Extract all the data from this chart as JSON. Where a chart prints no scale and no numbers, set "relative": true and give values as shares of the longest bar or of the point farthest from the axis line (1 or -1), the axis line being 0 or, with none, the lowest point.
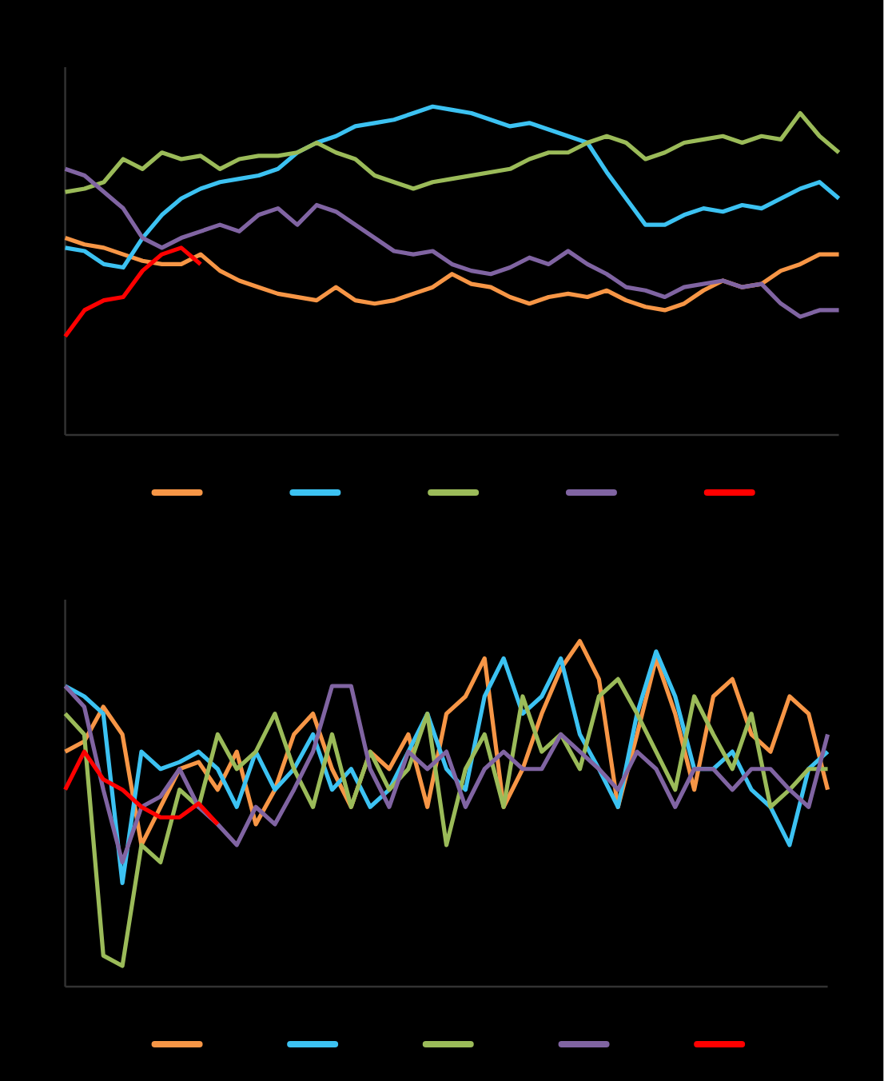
{
  "chart_data": [
    {
      "type": "line",
      "relative": true,
      "tick_labels": false,
      "line_style": "solid",
      "categories": [
        null,
        null,
        null,
        null,
        null,
        null,
        null,
        null,
        null,
        null,
        null,
        null,
        null,
        null,
        null,
        null,
        null,
        null,
        null,
        null,
        null,
        null,
        null,
        null,
        null,
        null,
        null,
        null,
        null,
        null,
        null,
        null,
        null,
        null,
        null,
        null,
        null,
        null,
        null,
        null,
        null
      ],
      "series": [
        {
          "color": "#f79646",
          "values": [
            0.6,
            0.58,
            0.57,
            0.55,
            0.53,
            0.52,
            0.52,
            0.55,
            0.5,
            0.47,
            0.45,
            0.43,
            0.42,
            0.41,
            0.45,
            0.41,
            0.4,
            0.41,
            0.43,
            0.45,
            0.49,
            0.46,
            0.45,
            0.42,
            0.4,
            0.42,
            0.43,
            0.42,
            0.44,
            0.41,
            0.39,
            0.38,
            0.4,
            0.44,
            0.47,
            0.45,
            0.46,
            0.5,
            0.52,
            0.55,
            0.55
          ]
        },
        {
          "color": "#3cc2f2",
          "values": [
            0.57,
            0.56,
            0.52,
            0.51,
            0.6,
            0.67,
            0.72,
            0.75,
            0.77,
            0.78,
            0.79,
            0.81,
            0.86,
            0.89,
            0.91,
            0.94,
            0.95,
            0.96,
            0.98,
            1.0,
            0.99,
            0.98,
            0.96,
            0.94,
            0.95,
            0.93,
            0.91,
            0.89,
            0.8,
            0.72,
            0.64,
            0.64,
            0.67,
            0.69,
            0.68,
            0.7,
            0.69,
            0.72,
            0.75,
            0.77,
            0.72
          ]
        },
        {
          "color": "#9bbb59",
          "values": [
            0.74,
            0.75,
            0.77,
            0.84,
            0.81,
            0.86,
            0.84,
            0.85,
            0.81,
            0.84,
            0.85,
            0.85,
            0.86,
            0.89,
            0.86,
            0.84,
            0.79,
            0.77,
            0.75,
            0.77,
            0.78,
            0.79,
            0.8,
            0.81,
            0.84,
            0.86,
            0.86,
            0.89,
            0.91,
            0.89,
            0.84,
            0.86,
            0.89,
            0.9,
            0.91,
            0.89,
            0.91,
            0.9,
            0.98,
            0.91,
            0.86
          ]
        },
        {
          "color": "#8064a2",
          "values": [
            0.81,
            0.79,
            0.74,
            0.69,
            0.6,
            0.57,
            0.6,
            0.62,
            0.64,
            0.62,
            0.67,
            0.69,
            0.64,
            0.7,
            0.68,
            0.64,
            0.6,
            0.56,
            0.55,
            0.56,
            0.52,
            0.5,
            0.49,
            0.51,
            0.54,
            0.52,
            0.56,
            0.52,
            0.49,
            0.45,
            0.44,
            0.42,
            0.45,
            0.46,
            0.47,
            0.45,
            0.46,
            0.4,
            0.36,
            0.38,
            0.38
          ]
        },
        {
          "color": "#ff0000",
          "values": [
            0.3,
            0.38,
            0.41,
            0.42,
            0.5,
            0.55,
            0.57,
            0.52,
            null,
            null,
            null,
            null,
            null,
            null,
            null,
            null,
            null,
            null,
            null,
            null,
            null,
            null,
            null,
            null,
            null,
            null,
            null,
            null,
            null,
            null,
            null,
            null,
            null,
            null,
            null,
            null,
            null,
            null,
            null,
            null,
            null
          ]
        }
      ]
    },
    {
      "type": "line",
      "relative": true,
      "tick_labels": false,
      "line_style": "solid",
      "categories": [
        null,
        null,
        null,
        null,
        null,
        null,
        null,
        null,
        null,
        null,
        null,
        null,
        null,
        null,
        null,
        null,
        null,
        null,
        null,
        null,
        null,
        null,
        null,
        null,
        null,
        null,
        null,
        null,
        null,
        null,
        null,
        null,
        null,
        null,
        null,
        null,
        null,
        null,
        null,
        null,
        null
      ],
      "series": [
        {
          "color": "#f79646",
          "values": [
            0.68,
            0.71,
            0.81,
            0.73,
            0.41,
            0.52,
            0.63,
            0.65,
            0.57,
            0.68,
            0.47,
            0.57,
            0.73,
            0.79,
            0.63,
            0.52,
            0.68,
            0.63,
            0.73,
            0.52,
            0.79,
            0.84,
            0.95,
            0.52,
            0.63,
            0.79,
            0.92,
            1.0,
            0.89,
            0.52,
            0.73,
            0.95,
            0.79,
            0.57,
            0.84,
            0.89,
            0.73,
            0.68,
            0.84,
            0.79,
            0.57
          ]
        },
        {
          "color": "#3cc2f2",
          "values": [
            0.87,
            0.84,
            0.79,
            0.3,
            0.68,
            0.63,
            0.65,
            0.68,
            0.63,
            0.52,
            0.68,
            0.57,
            0.63,
            0.73,
            0.57,
            0.63,
            0.52,
            0.57,
            0.68,
            0.79,
            0.63,
            0.57,
            0.84,
            0.95,
            0.79,
            0.84,
            0.95,
            0.73,
            0.63,
            0.52,
            0.79,
            0.97,
            0.84,
            0.63,
            0.63,
            0.68,
            0.57,
            0.52,
            0.41,
            0.63,
            0.68
          ]
        },
        {
          "color": "#9bbb59",
          "values": [
            0.79,
            0.73,
            0.09,
            0.06,
            0.41,
            0.36,
            0.57,
            0.52,
            0.73,
            0.63,
            0.68,
            0.79,
            0.63,
            0.52,
            0.73,
            0.52,
            0.68,
            0.57,
            0.63,
            0.79,
            0.41,
            0.63,
            0.73,
            0.52,
            0.84,
            0.68,
            0.73,
            0.63,
            0.84,
            0.89,
            0.79,
            0.68,
            0.57,
            0.84,
            0.73,
            0.63,
            0.79,
            0.52,
            0.57,
            0.63,
            0.63
          ]
        },
        {
          "color": "#8064a2",
          "values": [
            0.87,
            0.81,
            0.57,
            0.36,
            0.52,
            0.55,
            0.63,
            0.52,
            0.47,
            0.41,
            0.52,
            0.47,
            0.57,
            0.68,
            0.87,
            0.87,
            0.63,
            0.52,
            0.68,
            0.63,
            0.68,
            0.52,
            0.63,
            0.68,
            0.63,
            0.63,
            0.73,
            0.68,
            0.63,
            0.57,
            0.68,
            0.63,
            0.52,
            0.63,
            0.63,
            0.57,
            0.63,
            0.63,
            0.57,
            0.52,
            0.73
          ]
        },
        {
          "color": "#ff0000",
          "values": [
            0.57,
            0.68,
            0.6,
            0.57,
            0.52,
            0.49,
            0.49,
            0.53,
            0.47,
            null,
            null,
            null,
            null,
            null,
            null,
            null,
            null,
            null,
            null,
            null,
            null,
            null,
            null,
            null,
            null,
            null,
            null,
            null,
            null,
            null,
            null,
            null,
            null,
            null,
            null,
            null,
            null,
            null,
            null,
            null,
            null
          ]
        }
      ]
    }
  ]
}
